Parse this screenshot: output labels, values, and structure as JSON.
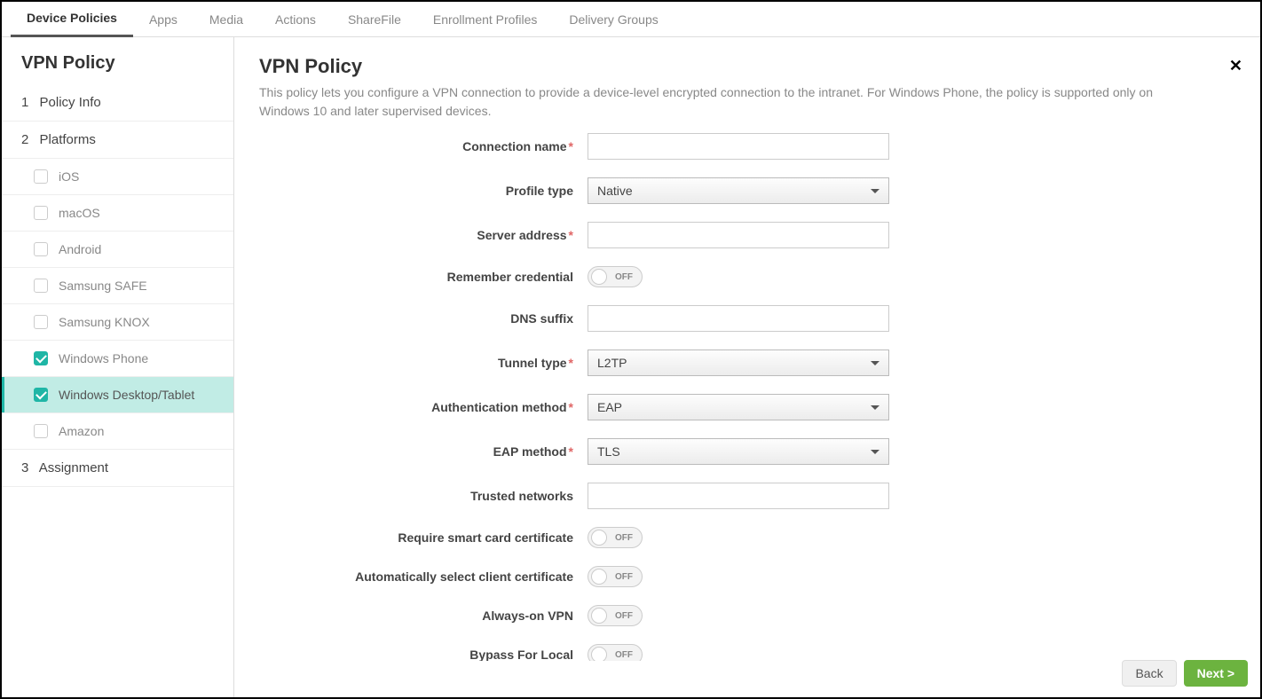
{
  "topTabs": [
    {
      "label": "Device Policies",
      "active": true
    },
    {
      "label": "Apps",
      "active": false
    },
    {
      "label": "Media",
      "active": false
    },
    {
      "label": "Actions",
      "active": false
    },
    {
      "label": "ShareFile",
      "active": false
    },
    {
      "label": "Enrollment Profiles",
      "active": false
    },
    {
      "label": "Delivery Groups",
      "active": false
    }
  ],
  "sidebar": {
    "title": "VPN Policy",
    "steps": [
      {
        "num": "1",
        "label": "Policy Info"
      },
      {
        "num": "2",
        "label": "Platforms"
      },
      {
        "num": "3",
        "label": "Assignment"
      }
    ],
    "platforms": [
      {
        "label": "iOS",
        "checked": false,
        "selected": false
      },
      {
        "label": "macOS",
        "checked": false,
        "selected": false
      },
      {
        "label": "Android",
        "checked": false,
        "selected": false
      },
      {
        "label": "Samsung SAFE",
        "checked": false,
        "selected": false
      },
      {
        "label": "Samsung KNOX",
        "checked": false,
        "selected": false
      },
      {
        "label": "Windows Phone",
        "checked": true,
        "selected": false
      },
      {
        "label": "Windows Desktop/Tablet",
        "checked": true,
        "selected": true
      },
      {
        "label": "Amazon",
        "checked": false,
        "selected": false
      }
    ]
  },
  "main": {
    "title": "VPN Policy",
    "description": "This policy lets you configure a VPN connection to provide a device-level encrypted connection to the intranet. For Windows Phone, the policy is supported only on Windows 10 and later supervised devices.",
    "closeLabel": "✕"
  },
  "form": {
    "connectionName": {
      "label": "Connection name",
      "required": true,
      "value": ""
    },
    "profileType": {
      "label": "Profile type",
      "required": false,
      "value": "Native"
    },
    "serverAddress": {
      "label": "Server address",
      "required": true,
      "value": ""
    },
    "rememberCredential": {
      "label": "Remember credential",
      "state": "OFF"
    },
    "dnsSuffix": {
      "label": "DNS suffix",
      "required": false,
      "value": ""
    },
    "tunnelType": {
      "label": "Tunnel type",
      "required": true,
      "value": "L2TP"
    },
    "authMethod": {
      "label": "Authentication method",
      "required": true,
      "value": "EAP"
    },
    "eapMethod": {
      "label": "EAP method",
      "required": true,
      "value": "TLS"
    },
    "trustedNetworks": {
      "label": "Trusted networks",
      "required": false,
      "value": ""
    },
    "requireSmartCard": {
      "label": "Require smart card certificate",
      "state": "OFF"
    },
    "autoSelectCert": {
      "label": "Automatically select client certificate",
      "state": "OFF"
    },
    "alwaysOn": {
      "label": "Always-on VPN",
      "state": "OFF"
    },
    "bypassLocal": {
      "label": "Bypass For Local",
      "state": "OFF"
    }
  },
  "footer": {
    "back": "Back",
    "next": "Next >"
  },
  "colors": {
    "accent": "#1fb6a6",
    "selectedBg": "#c1ece5",
    "primaryBtn": "#6cb33f",
    "required": "#e06666"
  }
}
